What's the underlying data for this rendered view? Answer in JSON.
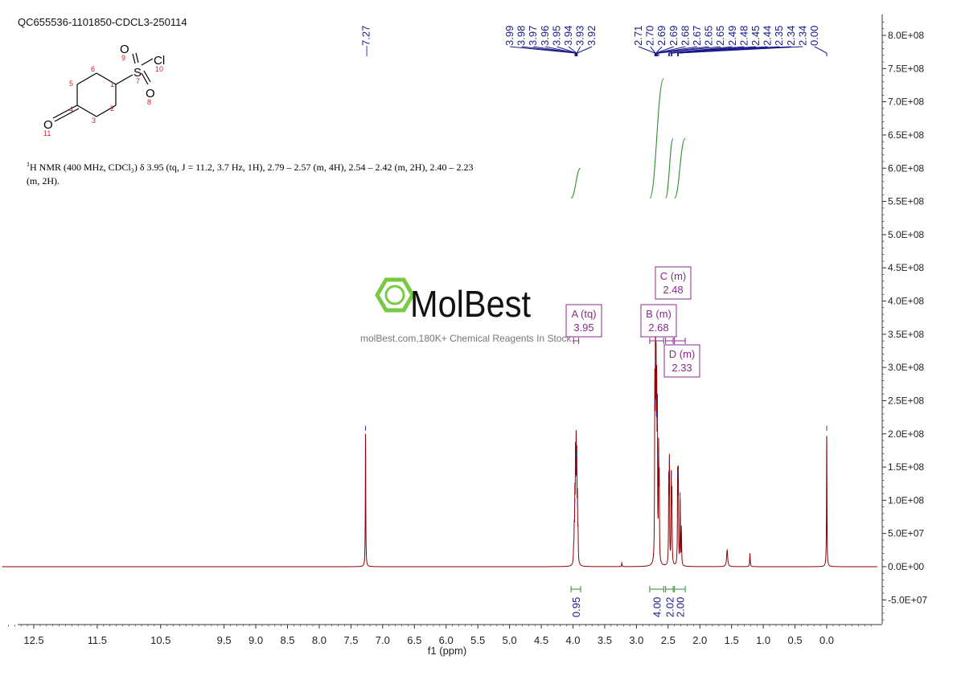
{
  "sample_id": "QC655536-1101850-CDCL3-250114",
  "description": {
    "nucleus_prefix": "1",
    "text": "H NMR (400 MHz, CDCl₃) δ 3.95 (tq, J = 11.2, 3.7 Hz, 1H), 2.79 – 2.57 (m, 4H), 2.54 – 2.42 (m, 2H), 2.40 – 2.23 (m, 2H)."
  },
  "watermark": {
    "brand": "MolBest",
    "tagline": "molBest.com,180K+ Chemical Reagents In Stock."
  },
  "structure": {
    "atoms": [
      "S",
      "Cl",
      "O",
      "O",
      "O"
    ],
    "atom_numbers": [
      "1",
      "2",
      "3",
      "4",
      "5",
      "6",
      "7",
      "8",
      "9",
      "10",
      "11"
    ]
  },
  "colors": {
    "spectrum": "#8b0000",
    "peak_labels": "#1a1a8c",
    "integral": "#2e8b2e",
    "multiplet_box": "#8b2a8b",
    "axis": "#333333",
    "atom_number": "#cc2222"
  },
  "chart_data": {
    "type": "line",
    "xlabel": "f1 (ppm)",
    "x_reversed": true,
    "xlim": [
      -0.8,
      13.0
    ],
    "ylim": [
      -85000000.0,
      825000000.0
    ],
    "x_ticks": [
      "12.5",
      "11.5",
      "10.5",
      "9.5",
      "9.0",
      "8.5",
      "8.0",
      "7.5",
      "7.0",
      "6.5",
      "6.0",
      "5.5",
      "5.0",
      "4.5",
      "4.0",
      "3.5",
      "3.0",
      "2.5",
      "2.0",
      "1.5",
      "1.0",
      "0.5",
      "0.0"
    ],
    "y_ticks": [
      "8.0E+08",
      "7.5E+08",
      "7.0E+08",
      "6.5E+08",
      "6.0E+08",
      "5.5E+08",
      "5.0E+08",
      "4.5E+08",
      "4.0E+08",
      "3.5E+08",
      "3.0E+08",
      "2.5E+08",
      "2.0E+08",
      "1.5E+08",
      "1.0E+08",
      "5.0E+07",
      "0.0E+00",
      "-5.0E+07"
    ],
    "y_position": "right",
    "peaks": [
      {
        "ppm": 7.27,
        "height": 200000000.0,
        "width": 0.004
      },
      {
        "ppm": 3.99,
        "height": 20000000.0,
        "width": 0.004
      },
      {
        "ppm": 3.98,
        "height": 45000000.0,
        "width": 0.004
      },
      {
        "ppm": 3.97,
        "height": 90000000.0,
        "width": 0.004
      },
      {
        "ppm": 3.96,
        "height": 145000000.0,
        "width": 0.004
      },
      {
        "ppm": 3.95,
        "height": 160000000.0,
        "width": 0.004
      },
      {
        "ppm": 3.94,
        "height": 140000000.0,
        "width": 0.004
      },
      {
        "ppm": 3.93,
        "height": 85000000.0,
        "width": 0.004
      },
      {
        "ppm": 3.92,
        "height": 40000000.0,
        "width": 0.004
      },
      {
        "ppm": 3.23,
        "height": 6000000.0,
        "width": 0.004
      },
      {
        "ppm": 2.71,
        "height": 240000000.0,
        "width": 0.004
      },
      {
        "ppm": 2.7,
        "height": 300000000.0,
        "width": 0.004
      },
      {
        "ppm": 2.69,
        "height": 250000000.0,
        "width": 0.004
      },
      {
        "ppm": 2.68,
        "height": 220000000.0,
        "width": 0.004
      },
      {
        "ppm": 2.67,
        "height": 210000000.0,
        "width": 0.004
      },
      {
        "ppm": 2.65,
        "height": 160000000.0,
        "width": 0.004
      },
      {
        "ppm": 2.64,
        "height": 120000000.0,
        "width": 0.004
      },
      {
        "ppm": 2.49,
        "height": 120000000.0,
        "width": 0.004
      },
      {
        "ppm": 2.48,
        "height": 150000000.0,
        "width": 0.004
      },
      {
        "ppm": 2.45,
        "height": 130000000.0,
        "width": 0.004
      },
      {
        "ppm": 2.44,
        "height": 100000000.0,
        "width": 0.004
      },
      {
        "ppm": 2.35,
        "height": 130000000.0,
        "width": 0.004
      },
      {
        "ppm": 2.34,
        "height": 135000000.0,
        "width": 0.004
      },
      {
        "ppm": 2.31,
        "height": 100000000.0,
        "width": 0.004
      },
      {
        "ppm": 2.29,
        "height": 50000000.0,
        "width": 0.004
      },
      {
        "ppm": 1.57,
        "height": 25000000.0,
        "width": 0.01
      },
      {
        "ppm": 1.21,
        "height": 20000000.0,
        "width": 0.005
      },
      {
        "ppm": 0.0,
        "height": 200000000.0,
        "width": 0.004
      }
    ],
    "peak_labels_single": [
      "7.27"
    ],
    "peak_label_groups": [
      [
        "3.99",
        "3.98",
        "3.97",
        "3.96",
        "3.95",
        "3.94",
        "3.93",
        "3.92"
      ],
      [
        "2.71",
        "2.70",
        "2.69",
        "2.69",
        "2.68",
        "2.67",
        "2.65",
        "2.65",
        "2.49",
        "2.48",
        "2.45",
        "2.44",
        "2.35",
        "2.34",
        "2.34",
        "0.00"
      ]
    ],
    "integrals": [
      {
        "from": 4.03,
        "to": 3.88,
        "value": "0.95",
        "y_start": 555000000.0,
        "y_end": 600000000.0
      },
      {
        "from": 2.79,
        "to": 2.57,
        "value": "4.00",
        "y_start": 555000000.0,
        "y_end": 735000000.0
      },
      {
        "from": 2.54,
        "to": 2.42,
        "value": "2.02",
        "y_start": 555000000.0,
        "y_end": 645000000.0
      },
      {
        "from": 2.4,
        "to": 2.23,
        "value": "2.00",
        "y_start": 555000000.0,
        "y_end": 645000000.0
      }
    ],
    "multiplets": [
      {
        "name": "A (tq)",
        "shift": "3.95",
        "ppm": 3.95,
        "range": [
          3.99,
          3.91
        ]
      },
      {
        "name": "B (m)",
        "shift": "2.68",
        "ppm": 2.68,
        "range": [
          2.79,
          2.57
        ]
      },
      {
        "name": "C (m)",
        "shift": "2.48",
        "ppm": 2.48,
        "range": [
          2.54,
          2.42
        ]
      },
      {
        "name": "D (m)",
        "shift": "2.33",
        "ppm": 2.33,
        "range": [
          2.4,
          2.23
        ]
      }
    ]
  }
}
